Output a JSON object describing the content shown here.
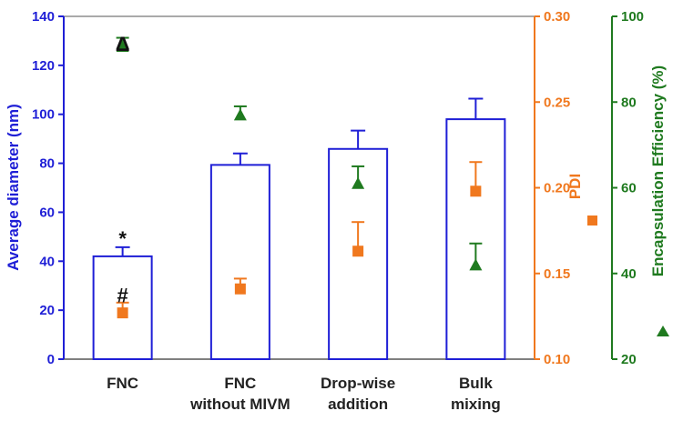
{
  "colors": {
    "diameter": "#1f1fd6",
    "pdi": "#f0781e",
    "efficiency": "#1f7a1f",
    "text": "#222222"
  },
  "chart_data": {
    "type": "bar",
    "categories": [
      [
        "FNC"
      ],
      [
        "FNC",
        "without MIVM"
      ],
      [
        "Drop-wise",
        "addition"
      ],
      [
        "Bulk",
        "mixing"
      ]
    ],
    "axes": {
      "left": {
        "label": "Average diameter (nm)",
        "ylim": [
          0,
          150
        ],
        "ticks": [
          "0",
          "20",
          "40",
          "60",
          "80",
          "100",
          "120",
          "140"
        ]
      },
      "right_pdi": {
        "label": "PDI",
        "ylim": [
          0.1,
          0.3
        ],
        "ticks": [
          "0.10",
          "0.15",
          "0.20",
          "0.25",
          "0.30"
        ]
      },
      "right_efficiency": {
        "label": "Encapsulation  Efficiency (%)",
        "ylim": [
          20,
          100
        ],
        "ticks": [
          "20",
          "40",
          "60",
          "80",
          "100"
        ]
      }
    },
    "series": [
      {
        "kind": "bar",
        "axis": "left",
        "values": [
          45,
          85,
          92,
          105
        ],
        "errors": [
          4,
          5,
          8,
          9
        ]
      },
      {
        "kind": "square-points",
        "axis": "right_pdi",
        "values": [
          0.127,
          0.141,
          0.163,
          0.198
        ],
        "errors": [
          0.006,
          0.006,
          0.017,
          0.017
        ]
      },
      {
        "kind": "triangle-points",
        "axis": "right_efficiency",
        "values": [
          93,
          77,
          61,
          42
        ],
        "errors": [
          2,
          2,
          4,
          5
        ]
      }
    ],
    "annotations": [
      {
        "text": "Δ",
        "category": 0,
        "axis": "left",
        "y": 138
      },
      {
        "text": "*",
        "category": 0,
        "axis": "left",
        "y": 53
      },
      {
        "text": "#",
        "category": 0,
        "axis": "left",
        "y": 28
      }
    ],
    "grid": false,
    "legend": "none"
  }
}
